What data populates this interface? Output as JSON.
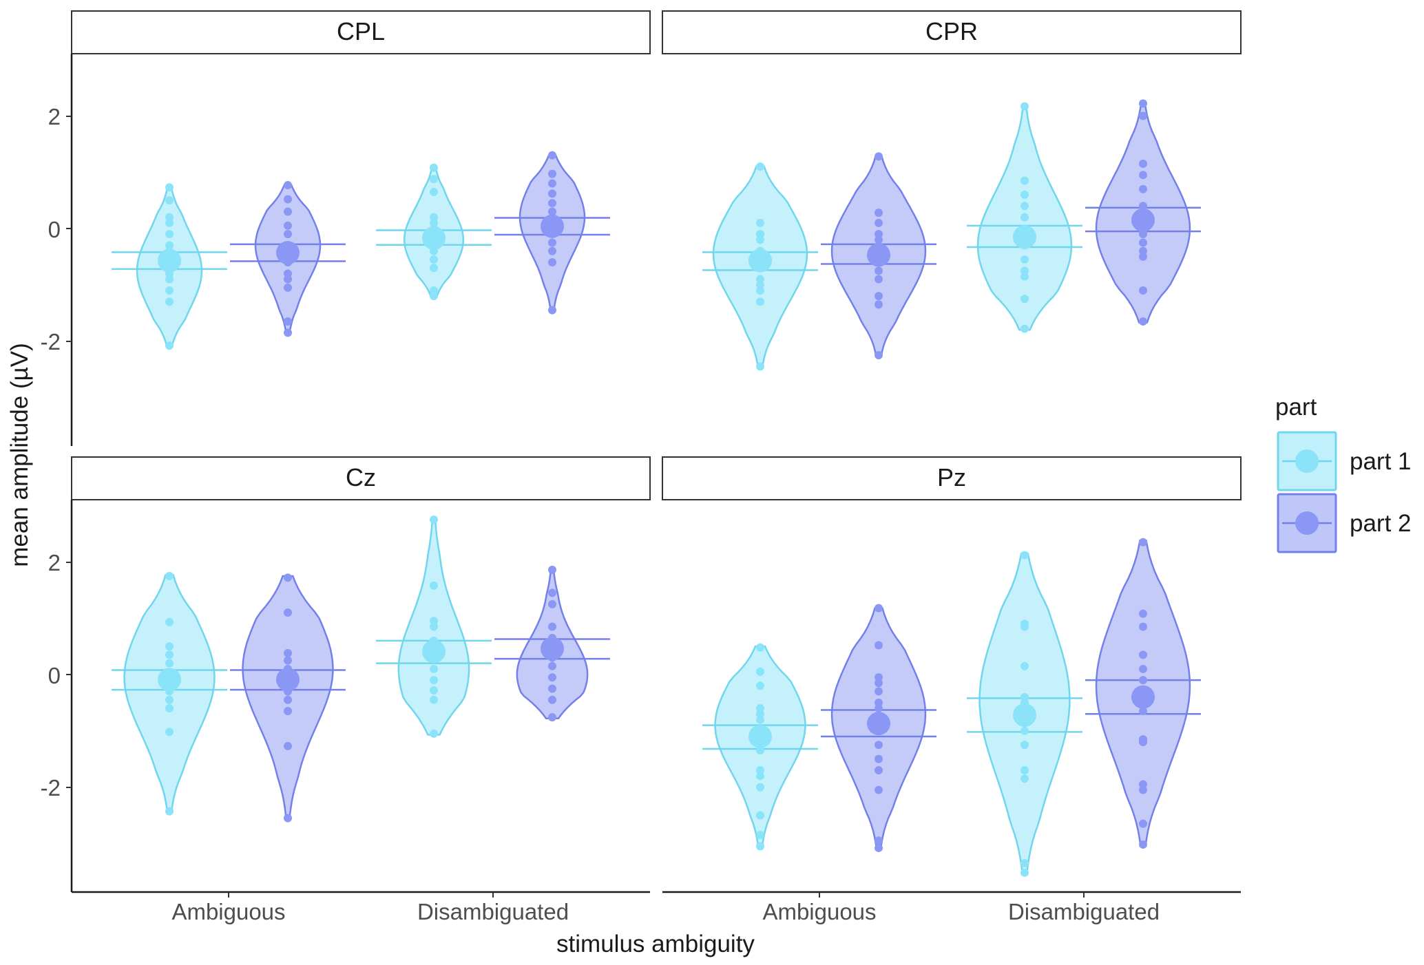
{
  "colors": {
    "part1": "#8ae3f8",
    "part2": "#8b97f4"
  },
  "chart_data": {
    "type": "violin",
    "xlabel": "stimulus ambiguity",
    "ylabel": "mean amplitude (µV)",
    "categories": [
      "Ambiguous",
      "Disambiguated"
    ],
    "yticks": [
      -2,
      0,
      2
    ],
    "ylim": [
      -3.7,
      3.0
    ],
    "legend": {
      "title": "part",
      "position": "right",
      "items": [
        "part 1",
        "part 2"
      ]
    },
    "panels": [
      {
        "title": "CPL",
        "groups": [
          {
            "category": "Ambiguous",
            "part": "part 1",
            "mean": -0.57,
            "ci": [
              -0.42,
              -0.72
            ],
            "min": -2.1,
            "max": 0.73,
            "bulge": -0.75,
            "width": 0.5,
            "points": [
              0.73,
              0.5,
              0.2,
              0.1,
              -0.1,
              -0.3,
              -0.4,
              -0.5,
              -0.6,
              -0.7,
              -0.8,
              -0.9,
              -1.1,
              -1.3,
              -2.08
            ]
          },
          {
            "category": "Ambiguous",
            "part": "part 2",
            "mean": -0.43,
            "ci": [
              -0.28,
              -0.58
            ],
            "min": -1.87,
            "max": 0.78,
            "bulge": -0.3,
            "width": 0.5,
            "points": [
              0.77,
              0.52,
              0.3,
              0.05,
              -0.1,
              -0.3,
              -0.4,
              -0.5,
              -0.6,
              -0.8,
              -0.9,
              -1.05,
              -1.65,
              -1.85
            ]
          },
          {
            "category": "Disambiguated",
            "part": "part 1",
            "mean": -0.17,
            "ci": [
              -0.03,
              -0.29
            ],
            "min": -1.22,
            "max": 1.1,
            "bulge": -0.2,
            "width": 0.45,
            "points": [
              1.08,
              0.88,
              0.65,
              0.2,
              0.1,
              0.0,
              -0.1,
              -0.2,
              -0.3,
              -0.4,
              -0.55,
              -0.7,
              -1.1,
              -1.2
            ]
          },
          {
            "category": "Disambiguated",
            "part": "part 2",
            "mean": 0.04,
            "ci": [
              0.19,
              -0.11
            ],
            "min": -1.45,
            "max": 1.3,
            "bulge": 0.2,
            "width": 0.5,
            "points": [
              1.3,
              0.97,
              0.8,
              0.62,
              0.45,
              0.3,
              0.2,
              0.05,
              -0.1,
              -0.25,
              -0.4,
              -0.6,
              -1.45
            ]
          }
        ]
      },
      {
        "title": "CPR",
        "groups": [
          {
            "category": "Ambiguous",
            "part": "part 1",
            "mean": -0.57,
            "ci": [
              -0.42,
              -0.74
            ],
            "min": -2.48,
            "max": 1.1,
            "bulge": -0.45,
            "width": 0.75,
            "points": [
              1.1,
              0.1,
              -0.1,
              -0.2,
              -0.4,
              -0.5,
              -0.7,
              -0.9,
              -1.0,
              -1.1,
              -1.3,
              -2.45
            ]
          },
          {
            "category": "Ambiguous",
            "part": "part 2",
            "mean": -0.47,
            "ci": [
              -0.28,
              -0.63
            ],
            "min": -2.27,
            "max": 1.28,
            "bulge": -0.4,
            "width": 0.75,
            "points": [
              1.28,
              0.28,
              0.1,
              -0.1,
              -0.2,
              -0.4,
              -0.6,
              -0.75,
              -0.9,
              -1.2,
              -1.35,
              -2.25
            ]
          },
          {
            "category": "Disambiguated",
            "part": "part 1",
            "mean": -0.15,
            "ci": [
              0.05,
              -0.33
            ],
            "min": -1.8,
            "max": 2.18,
            "bulge": -0.3,
            "width": 0.75,
            "points": [
              2.17,
              0.85,
              0.6,
              0.4,
              0.2,
              0.0,
              -0.1,
              -0.2,
              -0.3,
              -0.55,
              -0.75,
              -0.85,
              -1.25,
              -1.78
            ]
          },
          {
            "category": "Disambiguated",
            "part": "part 2",
            "mean": 0.15,
            "ci": [
              0.37,
              -0.05
            ],
            "min": -1.67,
            "max": 2.22,
            "bulge": 0.0,
            "width": 0.75,
            "points": [
              2.22,
              2.0,
              1.15,
              0.95,
              0.7,
              0.4,
              0.2,
              0.05,
              -0.1,
              -0.25,
              -0.4,
              -0.5,
              -1.1,
              -1.65
            ]
          }
        ]
      },
      {
        "title": "Cz",
        "groups": [
          {
            "category": "Ambiguous",
            "part": "part 1",
            "mean": -0.09,
            "ci": [
              0.08,
              -0.27
            ],
            "min": -2.45,
            "max": 1.77,
            "bulge": -0.05,
            "width": 0.72,
            "points": [
              1.75,
              0.93,
              0.5,
              0.35,
              0.2,
              0.0,
              -0.1,
              -0.2,
              -0.3,
              -0.45,
              -0.6,
              -1.02,
              -2.43
            ]
          },
          {
            "category": "Ambiguous",
            "part": "part 2",
            "mean": -0.09,
            "ci": [
              0.08,
              -0.27
            ],
            "min": -2.57,
            "max": 1.75,
            "bulge": 0.1,
            "width": 0.72,
            "points": [
              1.72,
              1.1,
              0.38,
              0.25,
              0.1,
              0.0,
              -0.1,
              -0.2,
              -0.3,
              -0.45,
              -0.65,
              -1.27,
              -2.55
            ]
          },
          {
            "category": "Disambiguated",
            "part": "part 1",
            "mean": 0.41,
            "ci": [
              0.6,
              0.2
            ],
            "min": -1.07,
            "max": 2.77,
            "bulge": 0.1,
            "width": 0.55,
            "points": [
              2.75,
              1.58,
              0.95,
              0.85,
              0.6,
              0.45,
              0.3,
              0.1,
              -0.1,
              -0.28,
              -0.45,
              -1.05
            ]
          },
          {
            "category": "Disambiguated",
            "part": "part 2",
            "mean": 0.46,
            "ci": [
              0.63,
              0.28
            ],
            "min": -0.78,
            "max": 1.87,
            "bulge": 0.0,
            "width": 0.55,
            "points": [
              1.86,
              1.45,
              1.25,
              0.85,
              0.65,
              0.5,
              0.3,
              0.15,
              -0.05,
              -0.25,
              -0.45,
              -0.76
            ]
          }
        ]
      },
      {
        "title": "Pz",
        "groups": [
          {
            "category": "Ambiguous",
            "part": "part 1",
            "mean": -1.1,
            "ci": [
              -0.9,
              -1.32
            ],
            "min": -3.1,
            "max": 0.5,
            "bulge": -0.9,
            "width": 0.72,
            "points": [
              0.48,
              0.05,
              -0.2,
              -0.6,
              -0.7,
              -0.8,
              -1.0,
              -1.2,
              -1.35,
              -1.7,
              -1.8,
              -2.0,
              -2.5,
              -2.85,
              -3.05
            ]
          },
          {
            "category": "Ambiguous",
            "part": "part 2",
            "mean": -0.87,
            "ci": [
              -0.63,
              -1.1
            ],
            "min": -3.1,
            "max": 1.18,
            "bulge": -0.7,
            "width": 0.75,
            "points": [
              1.18,
              0.52,
              -0.05,
              -0.15,
              -0.3,
              -0.5,
              -0.6,
              -0.8,
              -1.0,
              -1.25,
              -1.5,
              -1.7,
              -2.05,
              -2.95,
              -3.08
            ]
          },
          {
            "category": "Disambiguated",
            "part": "part 1",
            "mean": -0.72,
            "ci": [
              -0.42,
              -1.02
            ],
            "min": -3.55,
            "max": 2.15,
            "bulge": -0.45,
            "width": 0.72,
            "points": [
              2.12,
              0.9,
              0.85,
              0.15,
              -0.4,
              -0.5,
              -0.6,
              -0.8,
              -1.0,
              -1.25,
              -1.7,
              -1.85,
              -3.35,
              -3.52
            ]
          },
          {
            "category": "Disambiguated",
            "part": "part 2",
            "mean": -0.4,
            "ci": [
              -0.1,
              -0.7
            ],
            "min": -3.05,
            "max": 2.38,
            "bulge": -0.2,
            "width": 0.75,
            "points": [
              2.35,
              1.08,
              0.85,
              0.35,
              0.1,
              -0.1,
              -0.3,
              -0.65,
              -1.15,
              -1.2,
              -1.95,
              -2.05,
              -2.65,
              -3.02
            ]
          }
        ]
      }
    ]
  }
}
